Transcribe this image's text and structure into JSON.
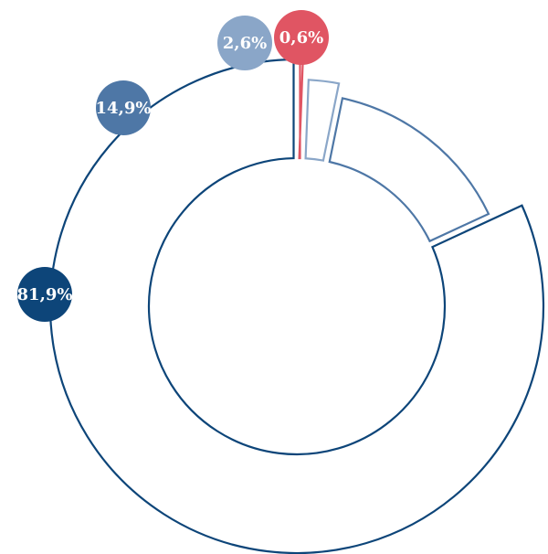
{
  "chart_data": {
    "type": "pie",
    "variant": "donut",
    "slices": [
      {
        "label": "0,6%",
        "value": 0.6,
        "color": "#e05563"
      },
      {
        "label": "2,6%",
        "value": 2.6,
        "color": "#8aa6c8"
      },
      {
        "label": "14,9%",
        "value": 14.9,
        "color": "#4e77a6"
      },
      {
        "label": "81,9%",
        "value": 81.9,
        "color": "#0d4579"
      }
    ],
    "legend": "none",
    "labels": "badges"
  }
}
